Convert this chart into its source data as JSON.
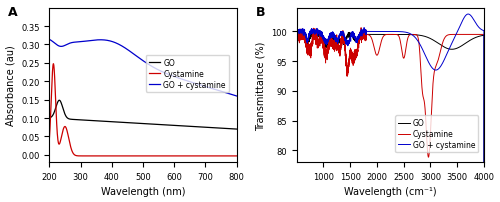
{
  "panel_A": {
    "title": "A",
    "xlabel": "Wavelength (nm)",
    "ylabel": "Absorbance (au)",
    "xlim": [
      200,
      800
    ],
    "ylim": [
      -0.02,
      0.4
    ],
    "yticks": [
      0.0,
      0.05,
      0.1,
      0.15,
      0.2,
      0.25,
      0.3,
      0.35
    ],
    "xticks": [
      200,
      300,
      400,
      500,
      600,
      700,
      800
    ],
    "go_color": "#000000",
    "cystamine_color": "#cc0000",
    "go_cystamine_color": "#0000cc",
    "legend_labels": [
      "GO",
      "Cystamine",
      "GO + cystamine"
    ]
  },
  "panel_B": {
    "title": "B",
    "xlabel": "Wavelength (cm⁻¹)",
    "ylabel": "Transmittance (%)",
    "xlim": [
      500,
      4000
    ],
    "ylim": [
      78,
      104
    ],
    "yticks": [
      80,
      85,
      90,
      95,
      100
    ],
    "xticks": [
      1000,
      1500,
      2000,
      2500,
      3000,
      3500,
      4000
    ],
    "go_color": "#000000",
    "cystamine_color": "#cc0000",
    "go_cystamine_color": "#0000cc",
    "legend_labels": [
      "GO",
      "Cystamine",
      "GO + cystamine"
    ]
  }
}
